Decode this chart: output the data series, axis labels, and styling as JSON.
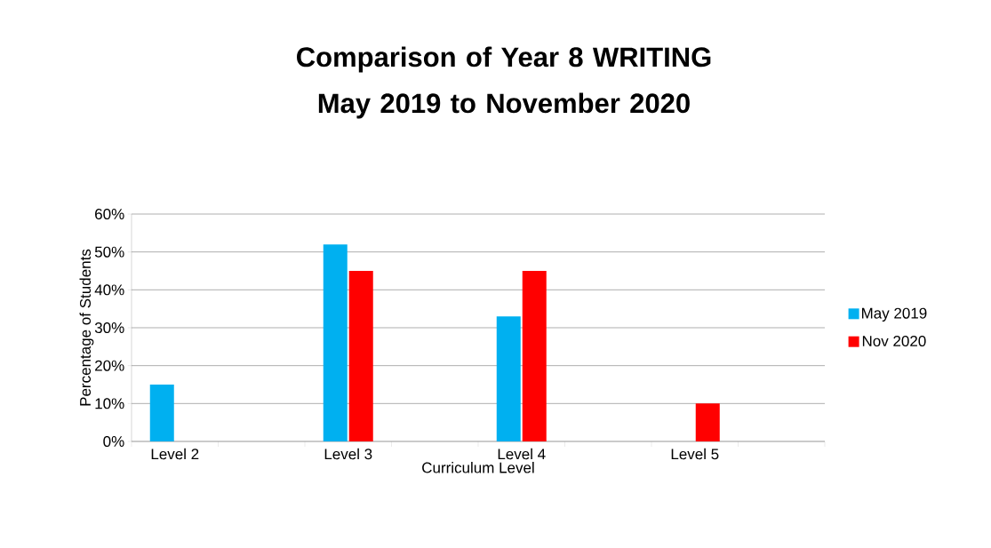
{
  "chart_data": {
    "type": "bar",
    "title": "Comparison of Year 8 WRITING May 2019 to November 2020",
    "xlabel": "Curriculum Level",
    "ylabel": "Percentage of Students",
    "categories": [
      "Level 2",
      null,
      "Level 3",
      null,
      "Level 4",
      null,
      "Level 5",
      null
    ],
    "series": [
      {
        "name": "May 2019",
        "color": "#00b0f0",
        "values": [
          15,
          null,
          52,
          null,
          33,
          null,
          null,
          null
        ]
      },
      {
        "name": "Nov 2020",
        "color": "#ff0000",
        "values": [
          null,
          null,
          45,
          null,
          45,
          null,
          10,
          null
        ]
      }
    ],
    "ylim": [
      0,
      60
    ],
    "yticks": [
      {
        "value": 0,
        "label": "0%"
      },
      {
        "value": 10,
        "label": "10%"
      },
      {
        "value": 20,
        "label": "20%"
      },
      {
        "value": 30,
        "label": "30%"
      },
      {
        "value": 40,
        "label": "40%"
      },
      {
        "value": 50,
        "label": "50%"
      },
      {
        "value": 60,
        "label": "60%"
      }
    ],
    "grid": "y",
    "legend": "right"
  }
}
